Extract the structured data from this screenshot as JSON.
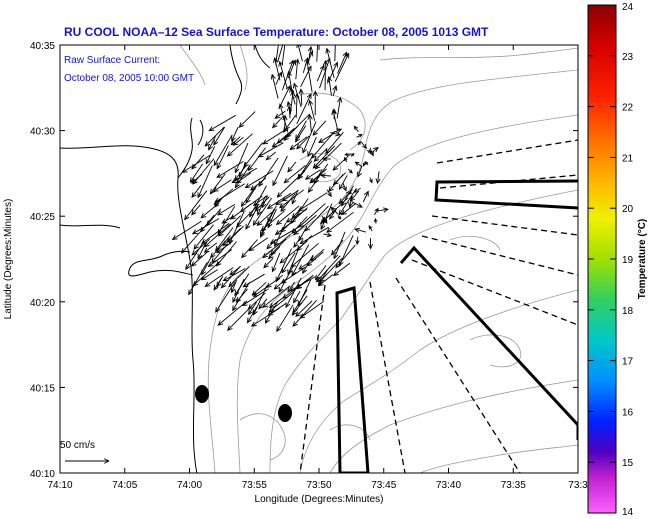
{
  "title": "RU COOL  NOAA–12  Sea Surface Temperature:  October 08, 2005 1013 GMT",
  "current_label_1": "Raw Surface Current:",
  "current_label_2": "October 08, 2005 10:00 GMT",
  "xlabel": "Longitude (Degrees:Minutes)",
  "ylabel": "Latitude (Degrees:Minutes)",
  "x_ticks": [
    "74:10",
    "74:05",
    "74:00",
    "73:55",
    "73:50",
    "73:45",
    "73:40",
    "73:35",
    "73:3"
  ],
  "y_ticks": [
    "40:35",
    "40:30",
    "40:25",
    "40:20",
    "40:15",
    "40:10"
  ],
  "scale_label": "50 cm/s",
  "colorbar": {
    "label": "Temperature (°C)",
    "ticks": [
      "24",
      "23",
      "22",
      "21",
      "20",
      "19",
      "18",
      "17",
      "16",
      "15",
      "14"
    ],
    "min": 14,
    "max": 24
  },
  "colors": {
    "text_blue": "#1515c8",
    "land_line": "#000000",
    "contour": "#999999"
  }
}
